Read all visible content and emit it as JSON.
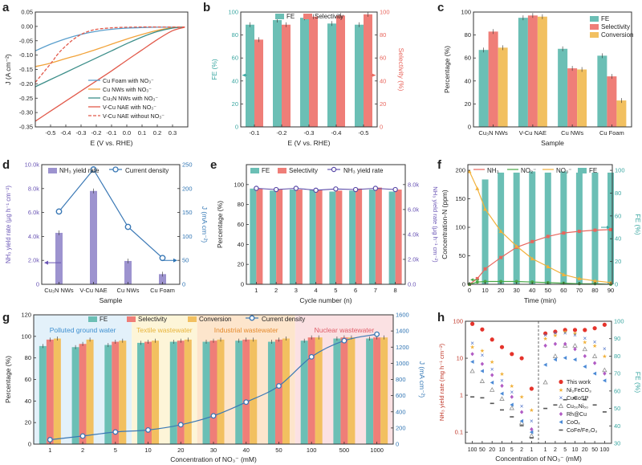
{
  "colors": {
    "fe": "#6bbfb5",
    "selectivity": "#ef7e78",
    "conversion": "#f2c060",
    "nh3_yield": "#9d93cf",
    "current": "#3a78b5",
    "line_feat": "#5a9fcd",
    "line_cu": "#f2a33a",
    "line_cu3n": "#3d8f8a",
    "line_vcu": "#e25a4b",
    "teal_axis": "#3aa6a1",
    "red_axis": "#e8665d",
    "purple_axis": "#6a55b5",
    "blue_axis": "#2f74b3"
  },
  "chart_data": [
    {
      "panel": "a",
      "type": "line",
      "xlabel": "E (V vs. RHE)",
      "ylabel": "J (A cm⁻²)",
      "xlim": [
        -0.6,
        0.4
      ],
      "ylim": [
        -0.35,
        0.05
      ],
      "xticks": [
        "-0.5",
        "-0.4",
        "-0.3",
        "-0.2",
        "-0.1",
        "0.0",
        "0.1",
        "0.2",
        "0.3"
      ],
      "yticks": [
        "0.05",
        "0.00",
        "-0.05",
        "-0.10",
        "-0.15",
        "-0.20",
        "-0.25",
        "-0.30",
        "-0.35"
      ],
      "series": [
        {
          "name": "Cu Foam with NO₃⁻",
          "style": "solid",
          "color": "#5a9fcd",
          "x": [
            -0.6,
            -0.5,
            -0.4,
            -0.3,
            -0.2,
            -0.1,
            0.0,
            0.1,
            0.2,
            0.3,
            0.38
          ],
          "y": [
            -0.085,
            -0.062,
            -0.043,
            -0.028,
            -0.017,
            -0.01,
            -0.006,
            -0.004,
            -0.003,
            -0.003,
            -0.003
          ]
        },
        {
          "name": "Cu NWs with NO₃⁻",
          "style": "solid",
          "color": "#f2a33a",
          "x": [
            -0.6,
            -0.5,
            -0.4,
            -0.3,
            -0.2,
            -0.1,
            0.0,
            0.1,
            0.2,
            0.3,
            0.38
          ],
          "y": [
            -0.14,
            -0.128,
            -0.112,
            -0.097,
            -0.08,
            -0.062,
            -0.044,
            -0.028,
            -0.014,
            -0.005,
            -0.002
          ]
        },
        {
          "name": "Cu₃N NWs with NO₃⁻",
          "style": "solid",
          "color": "#3d8f8a",
          "x": [
            -0.6,
            -0.5,
            -0.4,
            -0.3,
            -0.2,
            -0.1,
            0.0,
            0.1,
            0.2,
            0.3,
            0.38
          ],
          "y": [
            -0.21,
            -0.185,
            -0.16,
            -0.135,
            -0.11,
            -0.085,
            -0.06,
            -0.037,
            -0.018,
            -0.006,
            -0.002
          ]
        },
        {
          "name": "V-Cu NAE with NO₃⁻",
          "style": "solid",
          "color": "#e25a4b",
          "x": [
            -0.6,
            -0.5,
            -0.4,
            -0.3,
            -0.2,
            -0.1,
            0.0,
            0.1,
            0.2,
            0.3,
            0.38
          ],
          "y": [
            -0.33,
            -0.295,
            -0.26,
            -0.225,
            -0.19,
            -0.155,
            -0.118,
            -0.082,
            -0.046,
            -0.015,
            -0.003
          ]
        },
        {
          "name": "V-Cu NAE without NO₃⁻",
          "style": "dashed",
          "color": "#e25a4b",
          "x": [
            -0.6,
            -0.5,
            -0.45,
            -0.4,
            -0.35,
            -0.3,
            -0.25,
            -0.2,
            -0.1,
            0.0,
            0.1,
            0.2,
            0.3,
            0.38
          ],
          "y": [
            -0.195,
            -0.13,
            -0.095,
            -0.068,
            -0.045,
            -0.028,
            -0.017,
            -0.01,
            -0.005,
            -0.003,
            -0.002,
            -0.002,
            -0.002,
            -0.002
          ]
        }
      ]
    },
    {
      "panel": "b",
      "type": "bar",
      "xlabel": "E (V vs. RHE)",
      "ylabel": "FE (%)",
      "y2label": "Selectivity (%)",
      "ylim": [
        0,
        100
      ],
      "categories": [
        "-0.1",
        "-0.2",
        "-0.3",
        "-0.4",
        "-0.5"
      ],
      "series": [
        {
          "name": "FE",
          "values": [
            89,
            93,
            95,
            90,
            89
          ]
        },
        {
          "name": "Selectivity",
          "values": [
            76,
            89,
            96,
            97,
            98
          ]
        }
      ]
    },
    {
      "panel": "c",
      "type": "bar",
      "xlabel": "Sample",
      "ylabel": "Percentage (%)",
      "ylim": [
        0,
        100
      ],
      "categories": [
        "Cu₃N NWs",
        "V-Cu NAE",
        "Cu NWs",
        "Cu Foam"
      ],
      "series": [
        {
          "name": "FE",
          "values": [
            67,
            95,
            68,
            62
          ]
        },
        {
          "name": "Selectivity",
          "values": [
            83,
            97,
            51,
            44
          ]
        },
        {
          "name": "Conversion",
          "values": [
            69,
            96,
            50,
            23
          ]
        }
      ]
    },
    {
      "panel": "d",
      "type": "bar",
      "xlabel": "Sample",
      "ylabel": "NH₃ yield rate (μg h⁻¹ cm⁻²)",
      "y2label": "J (mA cm⁻²)",
      "ylim": [
        0,
        10000
      ],
      "y2lim": [
        0,
        250
      ],
      "yticks": [
        "0",
        "2.0k",
        "4.0k",
        "6.0k",
        "8.0k",
        "10.0k"
      ],
      "categories": [
        "Cu₃N NWs",
        "V-Cu NAE",
        "Cu NWs",
        "Cu Foam"
      ],
      "series": [
        {
          "name": "NH₃ yield rate",
          "values": [
            4300,
            7800,
            1950,
            850
          ]
        },
        {
          "name": "Current density",
          "values": [
            152,
            240,
            120,
            55
          ]
        }
      ]
    },
    {
      "panel": "e",
      "type": "bar",
      "xlabel": "Cycle number (n)",
      "ylabel": "Percentage (%)",
      "y2label": "NH₃ yield rate (μg h⁻¹ cm⁻²)",
      "ylim": [
        0,
        100
      ],
      "y2ticks": [
        "0.0",
        "2.0k",
        "4.0k",
        "6.0k",
        "8.0k"
      ],
      "categories": [
        "1",
        "2",
        "3",
        "4",
        "5",
        "6",
        "7",
        "8"
      ],
      "series": [
        {
          "name": "FE",
          "values": [
            96,
            94,
            95,
            95,
            93,
            94,
            95,
            93
          ]
        },
        {
          "name": "Selectivity",
          "values": [
            96,
            95,
            95,
            95,
            94,
            96,
            97,
            95
          ]
        },
        {
          "name": "NH₃ yield rate",
          "values": [
            7700,
            7600,
            7700,
            7550,
            7650,
            7600,
            7700,
            7600
          ]
        }
      ]
    },
    {
      "panel": "f",
      "type": "line",
      "xlabel": "Time (min)",
      "ylabel": "Concentration-N (ppm)",
      "y2label": "FE (%)",
      "ylim": [
        0,
        210
      ],
      "y2lim": [
        0,
        105
      ],
      "xticks": [
        "0",
        "10",
        "20",
        "30",
        "40",
        "50",
        "60",
        "70",
        "80",
        "90"
      ],
      "series": [
        {
          "name": "NH₃",
          "x": [
            0,
            5,
            10,
            20,
            30,
            40,
            50,
            60,
            70,
            80,
            90
          ],
          "values": [
            0,
            10,
            27,
            47,
            65,
            75,
            84,
            90,
            93,
            95,
            96
          ]
        },
        {
          "name": "NO₂⁻",
          "x": [
            0,
            5,
            10,
            20,
            30,
            40,
            50,
            60,
            70,
            80,
            90
          ],
          "values": [
            0,
            4,
            5,
            5,
            5,
            4,
            3,
            2,
            1,
            1,
            0
          ]
        },
        {
          "name": "NO₃⁻",
          "x": [
            0,
            5,
            10,
            20,
            30,
            40,
            50,
            60,
            70,
            80,
            90
          ],
          "values": [
            198,
            168,
            132,
            93,
            67,
            45,
            31,
            17,
            10,
            6,
            3
          ]
        },
        {
          "name": "FE",
          "x": [
            10,
            20,
            30,
            40,
            50,
            60,
            70,
            80,
            90
          ],
          "values": [
            92,
            98,
            98,
            99,
            98,
            99,
            98,
            98,
            98
          ]
        }
      ]
    },
    {
      "panel": "g",
      "type": "bar",
      "xlabel": "Concentration of NO₃⁻ (mM)",
      "ylabel": "Percentage (%)",
      "y2label": "J (mA cm⁻²)",
      "ylim": [
        0,
        120
      ],
      "y2lim": [
        0,
        1600
      ],
      "categories": [
        "1",
        "2",
        "5",
        "10",
        "20",
        "30",
        "40",
        "50",
        "100",
        "500",
        "1000"
      ],
      "regions": [
        "Polluted ground water",
        "Textile wastewater",
        "Industrial wastewater",
        "Nuclear wastewater"
      ],
      "series": [
        {
          "name": "FE",
          "values": [
            91,
            90,
            92,
            94,
            95,
            95,
            96,
            95,
            96,
            98,
            98
          ]
        },
        {
          "name": "Selectivity",
          "values": [
            97,
            93,
            95,
            95,
            96,
            96,
            97,
            97,
            99,
            99,
            99
          ]
        },
        {
          "name": "Conversion",
          "values": [
            98,
            97,
            96,
            96,
            97,
            97,
            97,
            98,
            99,
            99,
            99
          ]
        },
        {
          "name": "Current density",
          "values": [
            55,
            100,
            150,
            175,
            240,
            350,
            520,
            720,
            1080,
            1280,
            1360
          ]
        }
      ]
    },
    {
      "panel": "h",
      "type": "scatter",
      "xlabel": "Concentration of NO₃⁻ (mM)",
      "ylabel": "NH₃ yield rate (mg h⁻¹ cm⁻²)",
      "y2label": "FE (%)",
      "yscale": "log",
      "ylim": [
        0.05,
        100
      ],
      "y2lim": [
        30,
        100
      ],
      "xticks_left": [
        "100",
        "50",
        "20",
        "10",
        "5",
        "2",
        "1"
      ],
      "xticks_right": [
        "1",
        "2",
        "5",
        "10",
        "20",
        "50",
        "100"
      ],
      "series": [
        {
          "name": "This work",
          "yield": [
            85,
            60,
            32,
            20,
            13,
            10,
            1.5
          ],
          "fe": [
            93,
            94,
            95,
            95,
            95,
            96,
            98
          ]
        },
        {
          "name": "Ni₂FeCO₃",
          "yield": [
            20,
            16,
            8,
            3.8,
            1.8,
            0.9,
            0.4
          ],
          "fe": [
            90,
            92,
            94,
            93,
            88,
            86,
            80
          ]
        },
        {
          "name": "CuCoSP",
          "yield": [
            25,
            12,
            5,
            2.5,
            1.2,
            0.5,
            0.2
          ],
          "fe": [
            92,
            93,
            93,
            92,
            90,
            88,
            84
          ]
        },
        {
          "name": "Cu₅₀Ni₅₀",
          "yield": [
            4.5,
            2.4,
            1.4,
            0.8,
            0.45,
            0.18,
            0.08
          ],
          "fe": [
            65,
            80,
            86,
            86,
            84,
            80,
            72
          ]
        },
        {
          "name": "Rh@Cu",
          "yield": [
            13,
            7,
            3.5,
            1.8,
            0.9,
            0.35,
            0.12
          ],
          "fe": [
            86,
            87,
            87,
            84,
            80,
            76,
            70
          ]
        },
        {
          "name": "CoOₓ",
          "yield": [
            8,
            4.5,
            2.2,
            1.1,
            0.55,
            0.2,
            0.1
          ],
          "fe": [
            75,
            78,
            79,
            78,
            74,
            70,
            66
          ]
        },
        {
          "name": "CoFe/Fe₂O₃",
          "yield": [
            0.9,
            0.85,
            0.6,
            0.4,
            0.26,
            0.15,
            0.07
          ],
          "fe": [
            50,
            52,
            55,
            56,
            55,
            52,
            48
          ]
        }
      ]
    }
  ],
  "text": {
    "label_a": "a",
    "label_b": "b",
    "label_c": "c",
    "label_d": "d",
    "label_e": "e",
    "label_f": "f",
    "label_g": "g",
    "label_h": "h",
    "legend_a": [
      "Cu Foam with NO₃⁻",
      "Cu NWs with NO₃⁻",
      "Cu₃N NWs with NO₃⁻",
      "V-Cu NAE with NO₃⁻",
      "V-Cu NAE without NO₃⁻"
    ],
    "legend_b": [
      "FE",
      "Selectivity"
    ],
    "legend_c": [
      "FE",
      "Selectivity",
      "Conversion"
    ],
    "legend_d": [
      "NH₃ yield rate",
      "Current density"
    ],
    "legend_e": [
      "FE",
      "Selectivity",
      "NH₃ yield rate"
    ],
    "legend_f": [
      "NH₃",
      "NO₂⁻",
      "NO₃⁻",
      "FE"
    ],
    "legend_g": [
      "FE",
      "Selectivity",
      "Conversion",
      "Current density"
    ],
    "legend_h": [
      "This work",
      "Ni₂FeCO₃",
      "CuCoSP",
      "Cu₅₀Ni₅₀",
      "Rh@Cu",
      "CoOₓ",
      "CoFe/Fe₂O₃"
    ],
    "regions_g": [
      "Polluted ground water",
      "Textile wastewater",
      "Industrial wastewater",
      "Nuclear wastewater"
    ]
  }
}
